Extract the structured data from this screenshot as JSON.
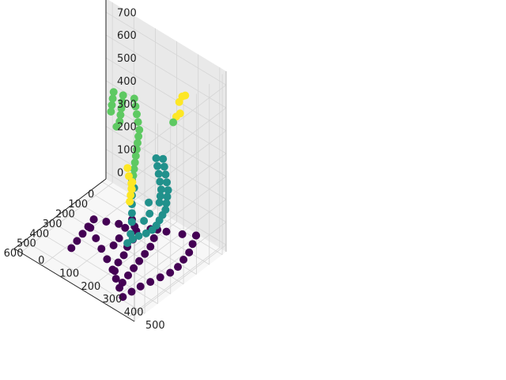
{
  "chart_data": {
    "type": "scatter3d",
    "title": "",
    "xlabel": "",
    "ylabel": "",
    "zlabel": "",
    "x_ticks": [
      0,
      100,
      200,
      300,
      400,
      500,
      600
    ],
    "y_ticks": [
      0,
      100,
      200,
      300,
      400,
      500
    ],
    "z_ticks": [
      0,
      100,
      200,
      300,
      400,
      500,
      600,
      700
    ],
    "xlim": [
      -30,
      680
    ],
    "ylim": [
      -30,
      530
    ],
    "zlim": [
      -30,
      760
    ],
    "grid": true,
    "colormap": "viridis",
    "colors": {
      "level_0": "#440154",
      "level_250": "#21918c",
      "level_400": "#5ec962",
      "level_600": "#fde725",
      "pane_left": "#f2f2f2",
      "pane_right": "#e9e9e9",
      "pane_floor": "#f7f7f7",
      "grid": "#d4d4d4"
    },
    "series": [
      {
        "values": [
          [
            20,
            420,
            0
          ],
          [
            60,
            380,
            0
          ],
          [
            100,
            330,
            0
          ],
          [
            140,
            280,
            0
          ],
          [
            180,
            230,
            0
          ],
          [
            220,
            180,
            0
          ],
          [
            250,
            140,
            0
          ],
          [
            280,
            100,
            0
          ],
          [
            620,
            440,
            0
          ],
          [
            580,
            400,
            0
          ],
          [
            540,
            360,
            0
          ],
          [
            500,
            320,
            0
          ],
          [
            460,
            270,
            0
          ],
          [
            420,
            220,
            0
          ],
          [
            380,
            170,
            0
          ],
          [
            340,
            120,
            0
          ],
          [
            20,
            420,
            0
          ],
          [
            80,
            440,
            0
          ],
          [
            140,
            460,
            0
          ],
          [
            200,
            470,
            0
          ],
          [
            260,
            480,
            0
          ],
          [
            320,
            480,
            0
          ],
          [
            380,
            470,
            0
          ],
          [
            440,
            460,
            0
          ],
          [
            500,
            450,
            0
          ],
          [
            560,
            445,
            0
          ],
          [
            280,
            100,
            0
          ],
          [
            340,
            110,
            0
          ],
          [
            400,
            120,
            0
          ],
          [
            460,
            130,
            0
          ],
          [
            520,
            140,
            0
          ],
          [
            120,
            300,
            0
          ],
          [
            180,
            320,
            0
          ],
          [
            240,
            340,
            0
          ],
          [
            300,
            350,
            0
          ],
          [
            360,
            360,
            0
          ],
          [
            420,
            370,
            0
          ],
          [
            480,
            380,
            0
          ],
          [
            540,
            390,
            0
          ],
          [
            200,
            250,
            0
          ],
          [
            260,
            270,
            0
          ],
          [
            320,
            280,
            0
          ],
          [
            380,
            300,
            0
          ],
          [
            440,
            310,
            0
          ],
          [
            500,
            330,
            0
          ],
          [
            150,
            200,
            0
          ],
          [
            220,
            210,
            0
          ],
          [
            300,
            230,
            0
          ],
          [
            360,
            240,
            0
          ]
        ]
      },
      {
        "values": [
          [
            10,
            260,
            240
          ],
          [
            50,
            290,
            240
          ],
          [
            90,
            320,
            240
          ],
          [
            130,
            350,
            240
          ],
          [
            170,
            380,
            240
          ],
          [
            210,
            400,
            240
          ],
          [
            250,
            420,
            240
          ],
          [
            290,
            440,
            240
          ],
          [
            330,
            450,
            240
          ],
          [
            370,
            460,
            240
          ],
          [
            410,
            470,
            240
          ],
          [
            450,
            475,
            240
          ],
          [
            490,
            470,
            240
          ],
          [
            530,
            460,
            240
          ],
          [
            570,
            455,
            240
          ],
          [
            610,
            455,
            240
          ],
          [
            30,
            240,
            240
          ],
          [
            70,
            270,
            240
          ],
          [
            110,
            300,
            240
          ],
          [
            150,
            330,
            240
          ],
          [
            190,
            360,
            240
          ],
          [
            230,
            380,
            240
          ],
          [
            270,
            400,
            240
          ],
          [
            300,
            300,
            260
          ],
          [
            350,
            320,
            260
          ],
          [
            400,
            350,
            260
          ],
          [
            450,
            380,
            260
          ],
          [
            500,
            410,
            260
          ],
          [
            250,
            260,
            250
          ],
          [
            320,
            380,
            250
          ],
          [
            380,
            420,
            250
          ],
          [
            440,
            430,
            250
          ],
          [
            560,
            440,
            250
          ]
        ]
      },
      {
        "values": [
          [
            0,
            120,
            420
          ],
          [
            40,
            150,
            420
          ],
          [
            80,
            180,
            420
          ],
          [
            120,
            210,
            420
          ],
          [
            160,
            240,
            420
          ],
          [
            200,
            260,
            420
          ],
          [
            240,
            280,
            420
          ],
          [
            280,
            300,
            420
          ],
          [
            320,
            320,
            420
          ],
          [
            360,
            340,
            420
          ],
          [
            400,
            360,
            420
          ],
          [
            440,
            380,
            420
          ],
          [
            480,
            400,
            420
          ],
          [
            520,
            420,
            420
          ],
          [
            560,
            440,
            420
          ],
          [
            600,
            460,
            420
          ],
          [
            20,
            80,
            420
          ],
          [
            60,
            100,
            420
          ],
          [
            100,
            120,
            420
          ],
          [
            140,
            140,
            420
          ],
          [
            180,
            160,
            420
          ],
          [
            220,
            170,
            420
          ],
          [
            60,
            60,
            440
          ],
          [
            100,
            80,
            440
          ],
          [
            140,
            100,
            440
          ],
          [
            180,
            120,
            440
          ],
          [
            600,
            470,
            480
          ],
          [
            620,
            480,
            520
          ],
          [
            640,
            480,
            560
          ],
          [
            650,
            480,
            600
          ],
          [
            150,
            420,
            640
          ],
          [
            160,
            440,
            680
          ],
          [
            170,
            460,
            700
          ],
          [
            160,
            430,
            600
          ],
          [
            140,
            400,
            560
          ],
          [
            130,
            380,
            520
          ]
        ]
      }
    ]
  }
}
